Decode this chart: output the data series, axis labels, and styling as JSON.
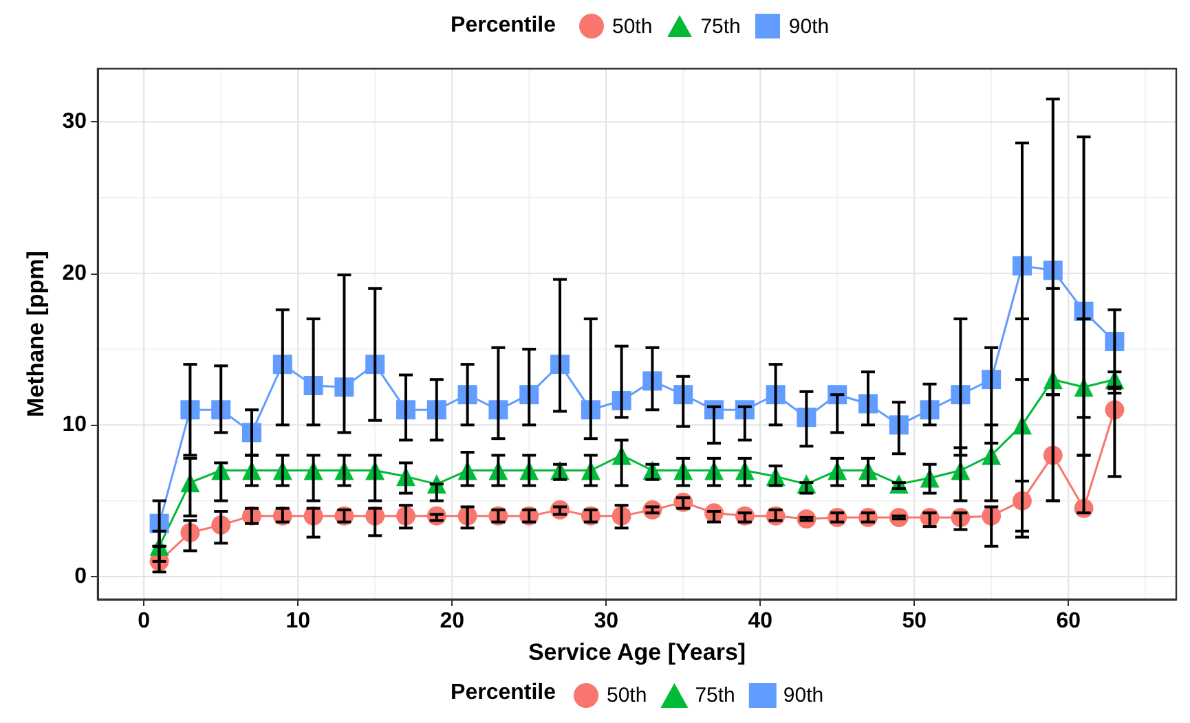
{
  "chart_data": {
    "type": "line",
    "xlabel": "Service Age [Years]",
    "ylabel": "Methane [ppm]",
    "legend_title": "Percentile",
    "legend": [
      "top",
      "bottom"
    ],
    "grid": true,
    "x": [
      1,
      3,
      5,
      7,
      9,
      11,
      13,
      15,
      17,
      19,
      21,
      23,
      25,
      27,
      29,
      31,
      33,
      35,
      37,
      39,
      41,
      43,
      45,
      47,
      49,
      51,
      53,
      55,
      57,
      59,
      61,
      63
    ],
    "xlim": [
      -3,
      67
    ],
    "xticks": [
      0,
      10,
      20,
      30,
      40,
      50,
      60
    ],
    "ylim": [
      -1.5,
      33.5
    ],
    "yticks": [
      0,
      10,
      20,
      30
    ],
    "series": [
      {
        "name": "50th",
        "color": "#f8766d",
        "marker": "circle",
        "values": [
          1,
          2.9,
          3.4,
          4,
          4,
          4,
          4,
          4,
          4,
          4,
          4,
          4,
          4,
          4.4,
          4,
          4,
          4.4,
          4.9,
          4.2,
          4,
          4,
          3.8,
          3.9,
          3.9,
          3.9,
          3.9,
          3.9,
          4,
          5,
          8,
          4.5,
          11
        ],
        "errors": [
          [
            0.3,
            2
          ],
          [
            1.7,
            3.7
          ],
          [
            2.2,
            4.3
          ],
          [
            3.5,
            4.5
          ],
          [
            3.6,
            4.5
          ],
          [
            2.6,
            4.5
          ],
          [
            3.6,
            4.4
          ],
          [
            2.7,
            4.5
          ],
          [
            3.2,
            4.7
          ],
          [
            3.7,
            4.1
          ],
          [
            3.2,
            4.6
          ],
          [
            3.6,
            4.4
          ],
          [
            3.6,
            4.4
          ],
          [
            4.1,
            4.6
          ],
          [
            3.6,
            4.4
          ],
          [
            3.2,
            4.7
          ],
          [
            4.2,
            4.6
          ],
          [
            4.5,
            5.2
          ],
          [
            3.6,
            4.3
          ],
          [
            3.6,
            4.2
          ],
          [
            3.7,
            4.4
          ],
          [
            3.7,
            3.9
          ],
          [
            3.6,
            4.2
          ],
          [
            3.6,
            4.2
          ],
          [
            3.8,
            4
          ],
          [
            3.3,
            4.2
          ],
          [
            3.1,
            4.2
          ],
          [
            2,
            4.6
          ],
          [
            3,
            13
          ],
          [
            5,
            12
          ],
          [
            4.2,
            8
          ],
          [
            6.6,
            12.4
          ]
        ]
      },
      {
        "name": "75th",
        "color": "#00ba38",
        "marker": "triangle",
        "values": [
          2,
          6.2,
          7,
          7,
          7,
          7,
          7,
          7,
          6.6,
          6.1,
          7,
          7,
          7,
          7,
          7,
          8,
          7,
          7,
          7,
          7,
          6.6,
          6.1,
          7,
          7,
          6.1,
          6.5,
          7,
          8,
          10,
          13,
          12.5,
          13
        ],
        "errors": [
          [
            1,
            3
          ],
          [
            4,
            7.8
          ],
          [
            5,
            7.5
          ],
          [
            6,
            8
          ],
          [
            6,
            8
          ],
          [
            5,
            8
          ],
          [
            6,
            8
          ],
          [
            5,
            8
          ],
          [
            5.5,
            7.5
          ],
          [
            5,
            6.1
          ],
          [
            6,
            8.2
          ],
          [
            6,
            8
          ],
          [
            6,
            8
          ],
          [
            6.4,
            7.4
          ],
          [
            6,
            8
          ],
          [
            6,
            9
          ],
          [
            6.4,
            7.4
          ],
          [
            6,
            7.8
          ],
          [
            6,
            7.8
          ],
          [
            6,
            7.8
          ],
          [
            6,
            7.3
          ],
          [
            5.5,
            6.2
          ],
          [
            6,
            7.8
          ],
          [
            6,
            7.8
          ],
          [
            5.8,
            6.2
          ],
          [
            5.5,
            7.4
          ],
          [
            5,
            8.5
          ],
          [
            5,
            10
          ],
          [
            2.6,
            17
          ],
          [
            5,
            19
          ],
          [
            10.5,
            17
          ],
          [
            12.5,
            13.5
          ]
        ]
      },
      {
        "name": "90th",
        "color": "#619cff",
        "marker": "square",
        "values": [
          3.5,
          11,
          11,
          9.5,
          14,
          12.6,
          12.5,
          14,
          11,
          11,
          12,
          11,
          12,
          14,
          11,
          11.6,
          12.9,
          12,
          11,
          11,
          12,
          10.5,
          12,
          11.4,
          10,
          11,
          12,
          13,
          20.5,
          20.2,
          17.5,
          15.5
        ],
        "errors": [
          [
            2,
            5
          ],
          [
            8,
            14
          ],
          [
            9.5,
            13.9
          ],
          [
            8,
            11
          ],
          [
            10,
            17.6
          ],
          [
            10,
            17
          ],
          [
            9.5,
            19.9
          ],
          [
            10.3,
            19
          ],
          [
            9,
            13.3
          ],
          [
            9,
            13
          ],
          [
            10,
            14
          ],
          [
            9.1,
            15.1
          ],
          [
            10,
            15
          ],
          [
            10.9,
            19.6
          ],
          [
            9.1,
            17
          ],
          [
            10.5,
            15.2
          ],
          [
            11,
            15.1
          ],
          [
            9.9,
            13.2
          ],
          [
            8.8,
            11.2
          ],
          [
            9,
            11.2
          ],
          [
            10,
            14
          ],
          [
            8.6,
            12.2
          ],
          [
            9.5,
            12
          ],
          [
            10,
            13.5
          ],
          [
            8.1,
            11.5
          ],
          [
            10,
            12.7
          ],
          [
            8,
            17
          ],
          [
            8.8,
            15.1
          ],
          [
            6.3,
            28.6
          ],
          [
            12,
            31.5
          ],
          [
            8,
            29
          ],
          [
            12.1,
            17.6
          ]
        ]
      }
    ]
  }
}
